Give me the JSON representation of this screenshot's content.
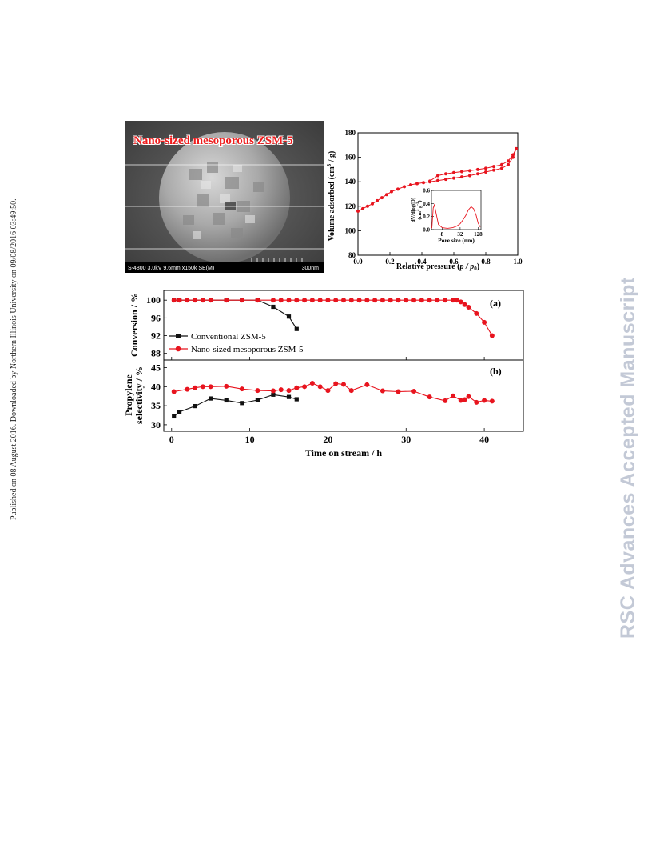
{
  "publication_note": "Published on 08 August 2016. Downloaded by Northern Illinois University on 09/08/2016 03:49:50.",
  "watermark": "RSC Advances Accepted Manuscript",
  "colors": {
    "red": "#e8141e",
    "black": "#111111",
    "watermark": "#c3c9d6"
  },
  "sem": {
    "title": "Nano-sized mesoporous ZSM-5",
    "info": "S-4800 3.0kV 9.6mm x150k SE(M)",
    "scale_label": "300nm"
  },
  "chart_data": [
    {
      "type": "line",
      "xlabel_plain": "Relative pressure (",
      "xlabel_italic": "p / p",
      "xlabel_sub": "0",
      "xlabel_end": ")",
      "ylabel_plain": "Volume adsorbed (cm",
      "ylabel_sup": "3",
      "ylabel_end": " / g)",
      "xlim": [
        0.0,
        1.0
      ],
      "ylim": [
        80,
        180
      ],
      "x_ticks": [
        "0.0",
        "0.2",
        "0.4",
        "0.6",
        "0.8",
        "1.0"
      ],
      "y_ticks": [
        "80",
        "100",
        "120",
        "140",
        "160",
        "180"
      ],
      "series": [
        {
          "x": [
            0.0,
            0.03,
            0.06,
            0.09,
            0.12,
            0.15,
            0.18,
            0.21,
            0.25,
            0.29,
            0.33,
            0.37,
            0.41,
            0.45,
            0.5,
            0.55,
            0.6,
            0.65,
            0.7,
            0.75,
            0.8,
            0.85,
            0.9,
            0.94,
            0.97,
            0.99
          ],
          "y": [
            116,
            118,
            120,
            122,
            124.5,
            127,
            129.5,
            132,
            134,
            136,
            137.5,
            138.5,
            139.3,
            140,
            141,
            142,
            143,
            144,
            145,
            146.5,
            148,
            149.5,
            151,
            154,
            160,
            167
          ]
        },
        {
          "x": [
            0.45,
            0.5,
            0.55,
            0.6,
            0.65,
            0.7,
            0.75,
            0.8,
            0.85,
            0.9,
            0.94,
            0.97,
            0.99
          ],
          "y": [
            140.5,
            145,
            146.5,
            147.5,
            148.3,
            149,
            150,
            151,
            152.5,
            154,
            157,
            162,
            167
          ]
        }
      ],
      "inset": {
        "xlabel": "Pore size (nm)",
        "ylabel_line1": "dV/dlog(D)",
        "ylabel_line2": "(cm",
        "ylabel_sup1": "3",
        "ylabel_mid": " g",
        "ylabel_sup2": "-1",
        "ylabel_end": ")",
        "x_ticks": [
          "8",
          "32",
          "128"
        ],
        "y_ticks": [
          "0.0",
          "0.2",
          "0.4",
          "0.6"
        ],
        "ylim": [
          0.0,
          0.6
        ],
        "x": [
          3.6,
          4.0,
          4.4,
          5.0,
          6.0,
          8.0,
          12,
          18,
          24,
          32,
          40,
          50,
          60,
          75,
          90,
          110,
          128,
          150
        ],
        "y": [
          0.02,
          0.33,
          0.38,
          0.25,
          0.08,
          0.03,
          0.02,
          0.03,
          0.05,
          0.09,
          0.15,
          0.22,
          0.3,
          0.35,
          0.32,
          0.22,
          0.1,
          0.04
        ]
      }
    },
    {
      "type": "line",
      "panel_a_label": "(a)",
      "panel_b_label": "(b)",
      "xlabel": "Time on stream / h",
      "xlim": [
        -1,
        45
      ],
      "x_ticks": [
        "0",
        "10",
        "20",
        "30",
        "40"
      ],
      "panel_a": {
        "ylabel": "Conversion / %",
        "ylim": [
          86.5,
          102.2
        ],
        "y_ticks": [
          "88",
          "92",
          "96",
          "100"
        ]
      },
      "panel_b": {
        "ylabel_line1": "Propylene",
        "ylabel_line2": "selectivity / %",
        "ylim": [
          28.3,
          47
        ],
        "y_ticks": [
          "30",
          "35",
          "40",
          "45"
        ]
      },
      "series": [
        {
          "name": "Conventional ZSM-5",
          "color": "#111111",
          "marker": "square",
          "conversion": {
            "x": [
              0.3,
              1,
              3,
              5,
              7,
              9,
              11,
              13,
              15,
              16
            ],
            "y": [
              100,
              100,
              100,
              100,
              100,
              100,
              100,
              98.5,
              96.3,
              93.5
            ]
          },
          "selectivity": {
            "x": [
              0.3,
              1,
              3,
              5,
              7,
              9,
              11,
              13,
              15,
              16
            ],
            "y": [
              32.2,
              33.4,
              34.9,
              36.9,
              36.4,
              35.7,
              36.5,
              37.9,
              37.3,
              36.7
            ]
          }
        },
        {
          "name": "Nano-sized mesoporous ZSM-5",
          "color": "#e8141e",
          "marker": "circle",
          "conversion": {
            "x": [
              0.3,
              1,
              2,
              3,
              4,
              5,
              7,
              9,
              11,
              13,
              14,
              15,
              16,
              17,
              18,
              19,
              20,
              21,
              22,
              23,
              24,
              25,
              26,
              27,
              28,
              29,
              30,
              31,
              32,
              33,
              34,
              35,
              36,
              36.5,
              37,
              37.5,
              38,
              39,
              40,
              41
            ],
            "y": [
              100,
              100,
              100,
              100,
              100,
              100,
              100,
              100,
              100,
              100,
              100,
              100,
              100,
              100,
              100,
              100,
              100,
              100,
              100,
              100,
              100,
              100,
              100,
              100,
              100,
              100,
              100,
              100,
              100,
              100,
              100,
              100,
              100,
              100,
              99.6,
              99.0,
              98.4,
              97.0,
              95.0,
              92.0
            ]
          },
          "selectivity": {
            "x": [
              0.3,
              2,
              3,
              4,
              5,
              7,
              9,
              11,
              13,
              14,
              15,
              16,
              17,
              18,
              19,
              20,
              21,
              22,
              23,
              25,
              27,
              29,
              31,
              33,
              35,
              36,
              37,
              37.5,
              38,
              39,
              40,
              41
            ],
            "y": [
              38.7,
              39.3,
              39.7,
              40.0,
              40.0,
              40.1,
              39.4,
              39.0,
              38.9,
              39.2,
              39.0,
              39.7,
              40.0,
              40.9,
              40.0,
              39.0,
              40.8,
              40.6,
              39.0,
              40.5,
              38.9,
              38.7,
              38.8,
              37.3,
              36.3,
              37.6,
              36.4,
              36.6,
              37.4,
              35.9,
              36.4,
              36.2
            ]
          }
        }
      ]
    }
  ]
}
